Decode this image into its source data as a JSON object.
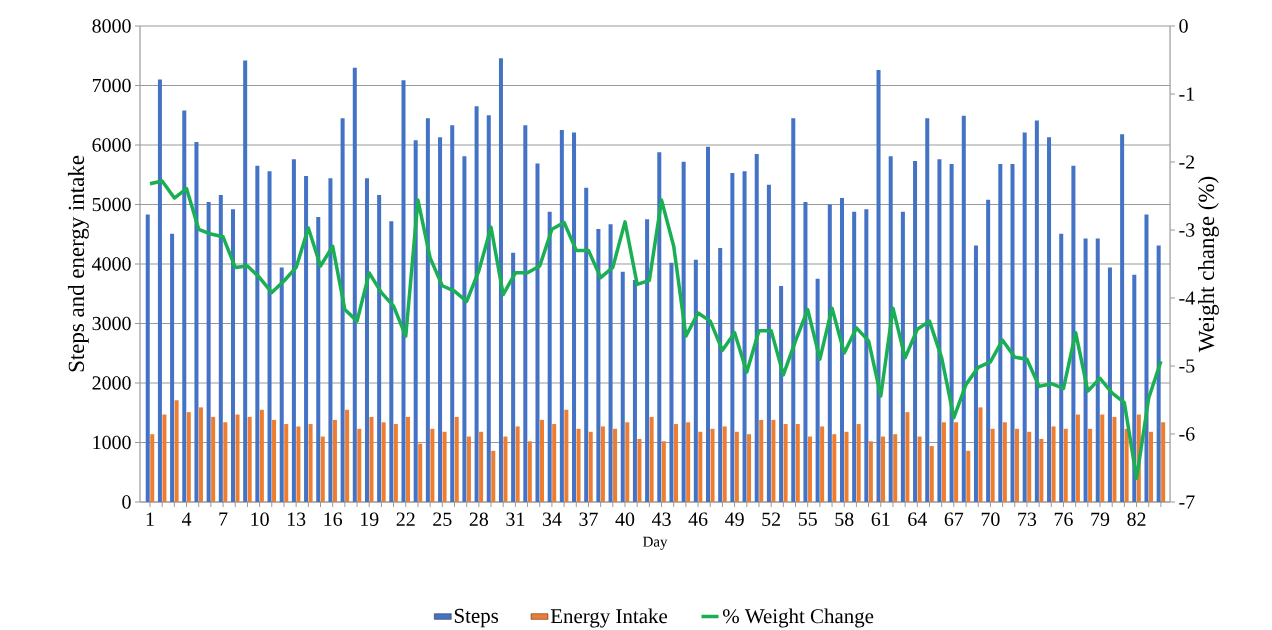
{
  "chart_data": {
    "type": "bar",
    "xlabel": "Day",
    "ylabel": "Steps and energy intake",
    "y2label": "Weight change (%)",
    "categories": [
      "1",
      null,
      null,
      "4",
      null,
      null,
      "7",
      null,
      null,
      "10",
      null,
      null,
      "13",
      null,
      null,
      "16",
      null,
      null,
      "19",
      null,
      null,
      "22",
      null,
      null,
      "25",
      null,
      null,
      "28",
      null,
      null,
      "31",
      null,
      null,
      "34",
      null,
      null,
      "37",
      null,
      null,
      "40",
      null,
      null,
      "43",
      null,
      null,
      "46",
      null,
      null,
      "49",
      null,
      null,
      "52",
      null,
      null,
      "55",
      null,
      null,
      "58",
      null,
      null,
      "61",
      null,
      null,
      "64",
      null,
      null,
      "67",
      null,
      null,
      "70",
      null,
      null,
      "73",
      null,
      null,
      "76",
      null,
      null,
      "79",
      null,
      null,
      "82",
      null,
      null
    ],
    "series": [
      {
        "name": "Steps",
        "color": "#4472c4",
        "values": [
          4830,
          7100,
          4510,
          6580,
          6050,
          5040,
          5160,
          4920,
          7420,
          5650,
          5560,
          3940,
          5760,
          5480,
          4790,
          5440,
          6450,
          7300,
          5440,
          5160,
          4720,
          7090,
          6080,
          6450,
          6130,
          6330,
          5810,
          6650,
          6500,
          7460,
          4190,
          6330,
          5690,
          4880,
          6250,
          6210,
          5280,
          4590,
          4670,
          3870,
          3730,
          4750,
          5880,
          4020,
          5720,
          4070,
          5970,
          4270,
          5530,
          5560,
          5850,
          5330,
          3630,
          6450,
          5040,
          3750,
          5000,
          5110,
          4880,
          4920,
          7260,
          5810,
          4880,
          5730,
          6450,
          5760,
          5680,
          6490,
          4310,
          5080,
          5680,
          5680,
          6210,
          6410,
          6130,
          4510,
          5650,
          4430,
          4430,
          3940,
          6180,
          3820,
          4830,
          4310
        ]
      },
      {
        "name": "Energy Intake",
        "color": "#ed7d31",
        "values": [
          1140,
          1470,
          1710,
          1510,
          1590,
          1430,
          1340,
          1470,
          1430,
          1550,
          1380,
          1310,
          1270,
          1310,
          1100,
          1380,
          1550,
          1230,
          1430,
          1340,
          1310,
          1430,
          980,
          1230,
          1180,
          1430,
          1100,
          1180,
          860,
          1100,
          1270,
          1020,
          1380,
          1310,
          1550,
          1230,
          1180,
          1270,
          1230,
          1340,
          1060,
          1430,
          1020,
          1310,
          1340,
          1180,
          1230,
          1270,
          1180,
          1140,
          1380,
          1380,
          1310,
          1310,
          1100,
          1270,
          1140,
          1180,
          1310,
          1020,
          1100,
          1140,
          1510,
          1100,
          940,
          1340,
          1340,
          860,
          1590,
          1230,
          1340,
          1230,
          1180,
          1060,
          1270,
          1230,
          1470,
          1230,
          1470,
          1430,
          1230,
          1470,
          1180,
          1340
        ]
      },
      {
        "name": "% Weight Change",
        "type": "line",
        "axis": "y2",
        "color": "#1aaf54",
        "values": [
          -2.32,
          -2.28,
          -2.53,
          -2.39,
          -2.99,
          -3.06,
          -3.1,
          -3.55,
          -3.53,
          -3.7,
          -3.92,
          -3.75,
          -3.55,
          -2.97,
          -3.53,
          -3.24,
          -4.17,
          -4.34,
          -3.63,
          -3.92,
          -4.12,
          -4.56,
          -2.56,
          -3.41,
          -3.82,
          -3.9,
          -4.05,
          -3.6,
          -2.96,
          -3.95,
          -3.63,
          -3.63,
          -3.53,
          -2.99,
          -2.89,
          -3.3,
          -3.3,
          -3.7,
          -3.55,
          -2.88,
          -3.8,
          -3.74,
          -2.56,
          -3.24,
          -4.56,
          -4.22,
          -4.34,
          -4.77,
          -4.51,
          -5.09,
          -4.48,
          -4.48,
          -5.13,
          -4.63,
          -4.17,
          -4.9,
          -4.15,
          -4.81,
          -4.44,
          -4.63,
          -5.44,
          -4.15,
          -4.88,
          -4.46,
          -4.34,
          -4.88,
          -5.76,
          -5.27,
          -5.02,
          -4.94,
          -4.62,
          -4.87,
          -4.9,
          -5.3,
          -5.26,
          -5.33,
          -4.51,
          -5.37,
          -5.18,
          -5.4,
          -5.54,
          -6.65,
          -5.47,
          -4.93
        ]
      }
    ],
    "ylim": [
      0,
      8000
    ],
    "yticks": [
      0,
      1000,
      2000,
      3000,
      4000,
      5000,
      6000,
      7000,
      8000
    ],
    "y2lim": [
      -7,
      0
    ],
    "y2ticks": [
      -7,
      -6,
      -5,
      -4,
      -3,
      -2,
      -1,
      0
    ],
    "grid": "y",
    "legend": "bottom",
    "marker": "none",
    "line_style": "solid"
  }
}
